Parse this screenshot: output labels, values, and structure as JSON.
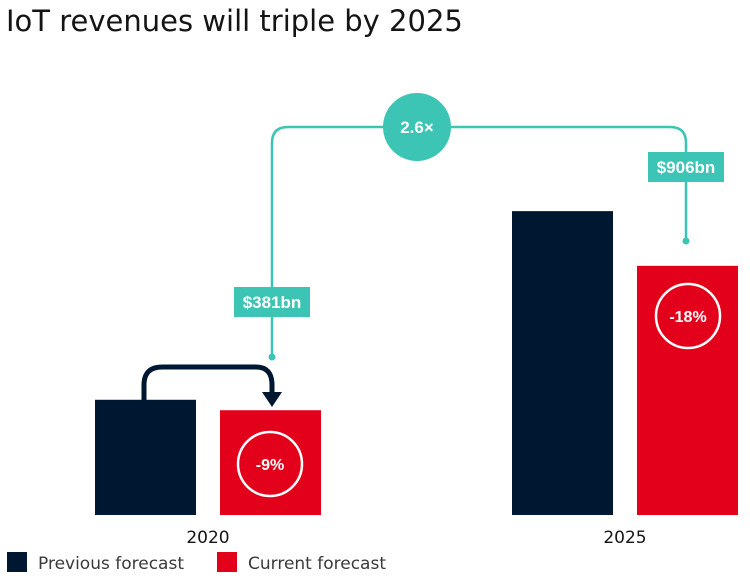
{
  "chart_data": {
    "type": "bar",
    "title": "IoT revenues will triple by 2025",
    "xlabel": "",
    "ylabel": "",
    "categories": [
      "2020",
      "2025"
    ],
    "series": [
      {
        "name": "Previous forecast",
        "color": "#001731",
        "values": [
          419,
          1105
        ]
      },
      {
        "name": "Current forecast",
        "color": "#e2001a",
        "values": [
          381,
          906
        ]
      }
    ],
    "ylim": [
      0,
      1200
    ],
    "legend": {
      "placement": "bottom-left",
      "entries": [
        "Previous forecast",
        "Current forecast"
      ]
    },
    "annotations": {
      "multiplier": "2.6×",
      "callouts": [
        "$381bn",
        "$906bn"
      ],
      "changes": [
        "-9%",
        "-18%"
      ]
    },
    "colors": {
      "accent": "#3cc4b4",
      "previous": "#001731",
      "current": "#e2001a"
    }
  }
}
